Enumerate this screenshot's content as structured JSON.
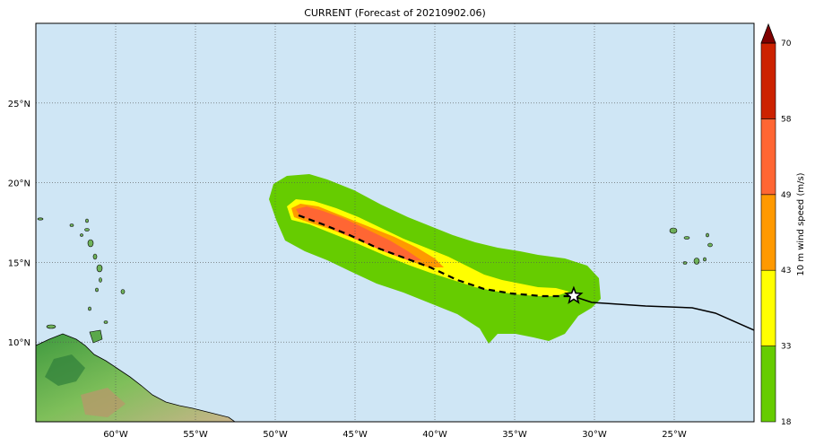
{
  "title": "CURRENT (Forecast of 20210902.06)",
  "map": {
    "ocean_color": "#cfe6f5",
    "grid_style": "dotted",
    "lon_ticks": [
      {
        "value": -60,
        "label": "60°W"
      },
      {
        "value": -55,
        "label": "55°W"
      },
      {
        "value": -50,
        "label": "50°W"
      },
      {
        "value": -45,
        "label": "45°W"
      },
      {
        "value": -40,
        "label": "40°W"
      },
      {
        "value": -35,
        "label": "35°W"
      },
      {
        "value": -30,
        "label": "30°W"
      },
      {
        "value": -25,
        "label": "25°W"
      }
    ],
    "lat_ticks": [
      {
        "value": 25,
        "label": "25°N"
      },
      {
        "value": 20,
        "label": "20°N"
      },
      {
        "value": 15,
        "label": "15°N"
      },
      {
        "value": 10,
        "label": "10°N"
      }
    ],
    "lon_range": [
      -65,
      -20
    ],
    "lat_range": [
      5,
      30
    ]
  },
  "storm": {
    "current_position": {
      "lon": -31.3,
      "lat": 12.9,
      "symbol": "star"
    },
    "forecast_track_style": "dashed",
    "past_track_style": "solid"
  },
  "colorbar": {
    "label": "10 m wind speed (m/s)",
    "ticks": [
      "18",
      "33",
      "43",
      "49",
      "58",
      "70"
    ],
    "colors": [
      "#66cc00",
      "#ffff00",
      "#ff9900",
      "#ff6633",
      "#cc2200",
      "#800000"
    ]
  }
}
